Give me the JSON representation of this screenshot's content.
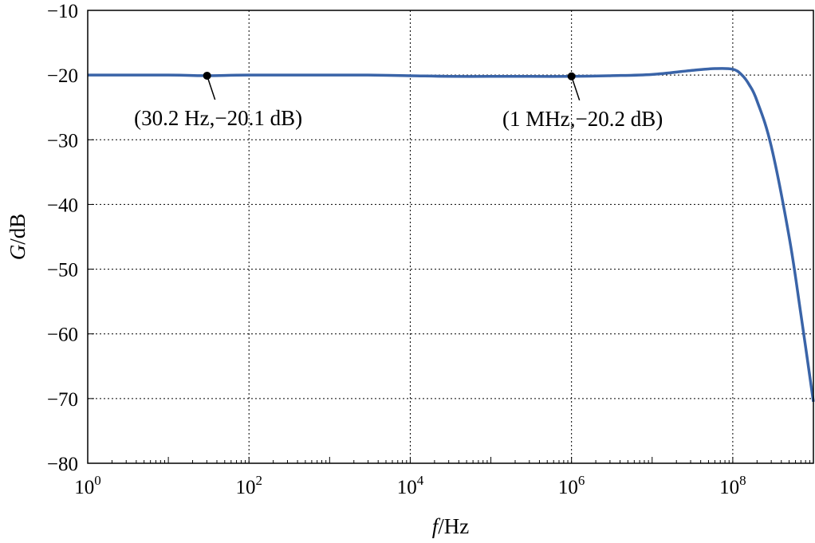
{
  "chart_data": {
    "type": "line",
    "title": "",
    "x_scale": "log",
    "xlim": [
      1,
      1000000000
    ],
    "ylim": [
      -80,
      -10
    ],
    "xlabel": {
      "italic": "f",
      "rest": "/Hz"
    },
    "ylabel": {
      "italic": "G",
      "rest": "/dB"
    },
    "x_ticks": [
      {
        "value": 1,
        "base": "10",
        "exp": "0"
      },
      {
        "value": 100,
        "base": "10",
        "exp": "2"
      },
      {
        "value": 10000,
        "base": "10",
        "exp": "4"
      },
      {
        "value": 1000000,
        "base": "10",
        "exp": "6"
      },
      {
        "value": 100000000,
        "base": "10",
        "exp": "8"
      }
    ],
    "y_ticks": [
      {
        "value": -10,
        "label": "−10"
      },
      {
        "value": -20,
        "label": "−20"
      },
      {
        "value": -30,
        "label": "−30"
      },
      {
        "value": -40,
        "label": "−40"
      },
      {
        "value": -50,
        "label": "−50"
      },
      {
        "value": -60,
        "label": "−60"
      },
      {
        "value": -70,
        "label": "−70"
      },
      {
        "value": -80,
        "label": "−80"
      }
    ],
    "grid": true,
    "line_color": "#3a64a8",
    "series": [
      {
        "x": [
          1,
          10,
          30.2,
          100,
          1000,
          3000,
          10000,
          30000,
          100000,
          300000,
          1000000,
          3000000,
          10000000,
          30000000,
          60000000,
          100000000,
          130000000,
          160000000,
          200000000,
          300000000,
          500000000,
          700000000,
          1000000000
        ],
        "y": [
          -20.0,
          -20.0,
          -20.1,
          -20.0,
          -20.0,
          -20.0,
          -20.1,
          -20.2,
          -20.2,
          -20.2,
          -20.2,
          -20.1,
          -19.9,
          -19.3,
          -19.0,
          -19.1,
          -20.0,
          -21.5,
          -24.0,
          -31.0,
          -45.0,
          -57.0,
          -70.5
        ]
      }
    ],
    "annotations": [
      {
        "x": 30.2,
        "y": -20.1,
        "text": "(30.2 Hz,−20.1 dB)"
      },
      {
        "x": 1000000,
        "y": -20.2,
        "text": "(1 MHz,−20.2 dB)"
      }
    ]
  }
}
